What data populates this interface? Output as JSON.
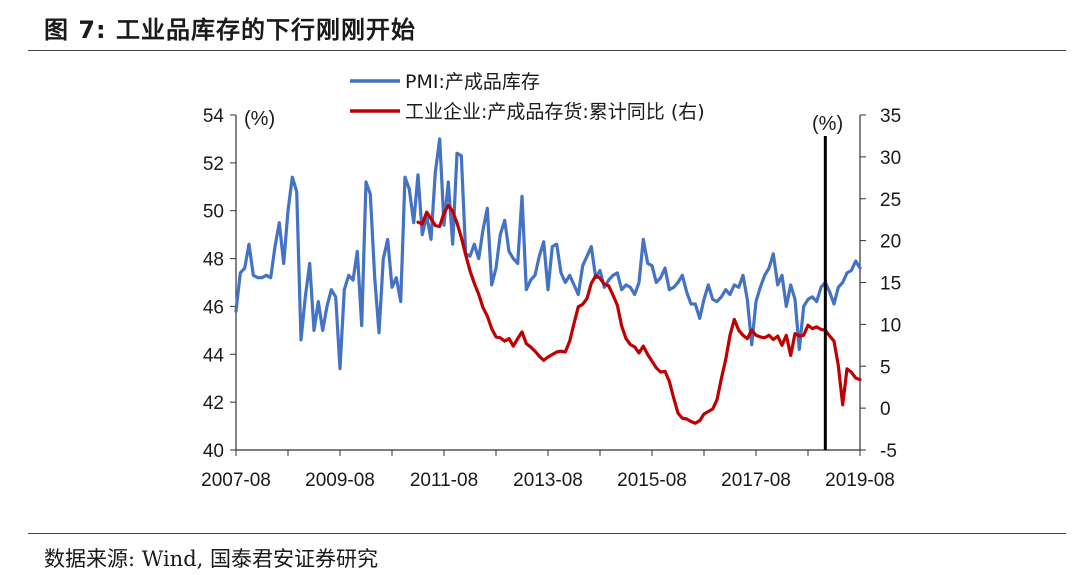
{
  "title": "图 7: 工业品库存的下行刚刚开始",
  "source": "数据来源: Wind, 国泰君安证券研究",
  "chart_data": {
    "type": "line",
    "x_tick_labels": [
      "2007-08",
      "2009-08",
      "2011-08",
      "2013-08",
      "2015-08",
      "2017-08",
      "2019-08"
    ],
    "x_range": [
      "2007-08",
      "2019-08"
    ],
    "left_axis": {
      "unit": "(%)",
      "ylim": [
        40,
        54
      ],
      "ticks": [
        40,
        42,
        44,
        46,
        48,
        50,
        52,
        54
      ]
    },
    "right_axis": {
      "unit": "(%)",
      "ylim": [
        -5,
        35
      ],
      "ticks": [
        -5,
        0,
        5,
        10,
        15,
        20,
        25,
        30,
        35
      ]
    },
    "vertical_marker": {
      "x": "2018-12",
      "note": "black vertical line"
    },
    "series": [
      {
        "name": "PMI:产成品库存",
        "axis": "left",
        "color": "#4472C4",
        "x": [
          "2007-08",
          "2007-09",
          "2007-10",
          "2007-11",
          "2007-12",
          "2008-01",
          "2008-02",
          "2008-03",
          "2008-04",
          "2008-05",
          "2008-06",
          "2008-07",
          "2008-08",
          "2008-09",
          "2008-10",
          "2008-11",
          "2008-12",
          "2009-01",
          "2009-02",
          "2009-03",
          "2009-04",
          "2009-05",
          "2009-06",
          "2009-07",
          "2009-08",
          "2009-09",
          "2009-10",
          "2009-11",
          "2009-12",
          "2010-01",
          "2010-02",
          "2010-03",
          "2010-04",
          "2010-05",
          "2010-06",
          "2010-07",
          "2010-08",
          "2010-09",
          "2010-10",
          "2010-11",
          "2010-12",
          "2011-01",
          "2011-02",
          "2011-03",
          "2011-04",
          "2011-05",
          "2011-06",
          "2011-07",
          "2011-08",
          "2011-09",
          "2011-10",
          "2011-11",
          "2011-12",
          "2012-01",
          "2012-02",
          "2012-03",
          "2012-04",
          "2012-05",
          "2012-06",
          "2012-07",
          "2012-08",
          "2012-09",
          "2012-10",
          "2012-11",
          "2012-12",
          "2013-01",
          "2013-02",
          "2013-03",
          "2013-04",
          "2013-05",
          "2013-06",
          "2013-07",
          "2013-08",
          "2013-09",
          "2013-10",
          "2013-11",
          "2013-12",
          "2014-01",
          "2014-02",
          "2014-03",
          "2014-04",
          "2014-05",
          "2014-06",
          "2014-07",
          "2014-08",
          "2014-09",
          "2014-10",
          "2014-11",
          "2014-12",
          "2015-01",
          "2015-02",
          "2015-03",
          "2015-04",
          "2015-05",
          "2015-06",
          "2015-07",
          "2015-08",
          "2015-09",
          "2015-10",
          "2015-11",
          "2015-12",
          "2016-01",
          "2016-02",
          "2016-03",
          "2016-04",
          "2016-05",
          "2016-06",
          "2016-07",
          "2016-08",
          "2016-09",
          "2016-10",
          "2016-11",
          "2016-12",
          "2017-01",
          "2017-02",
          "2017-03",
          "2017-04",
          "2017-05",
          "2017-06",
          "2017-07",
          "2017-08",
          "2017-09",
          "2017-10",
          "2017-11",
          "2017-12",
          "2018-01",
          "2018-02",
          "2018-03",
          "2018-04",
          "2018-05",
          "2018-06",
          "2018-07",
          "2018-08",
          "2018-09",
          "2018-10",
          "2018-11",
          "2018-12",
          "2019-01",
          "2019-02",
          "2019-03",
          "2019-04",
          "2019-05",
          "2019-06",
          "2019-07",
          "2019-08"
        ],
        "values": [
          45.8,
          47.4,
          47.6,
          48.6,
          47.3,
          47.2,
          47.2,
          47.3,
          47.2,
          48.5,
          49.5,
          47.8,
          50.0,
          51.4,
          50.8,
          44.6,
          46.4,
          47.8,
          45.0,
          46.2,
          45.0,
          46.0,
          46.7,
          46.4,
          43.4,
          46.7,
          47.3,
          47.1,
          48.3,
          45.2,
          51.2,
          50.7,
          47.2,
          44.9,
          48.0,
          48.8,
          46.8,
          47.2,
          46.2,
          51.4,
          50.9,
          49.5,
          51.5,
          49.0,
          49.8,
          48.8,
          51.6,
          53.0,
          49.4,
          51.2,
          48.6,
          52.4,
          52.3,
          48.2,
          48.1,
          48.6,
          48.0,
          49.2,
          50.1,
          46.9,
          47.6,
          49.0,
          49.6,
          48.3,
          48.0,
          47.8,
          50.6,
          46.7,
          47.1,
          47.3,
          48.1,
          48.7,
          46.7,
          48.5,
          48.6,
          47.4,
          47.0,
          47.3,
          46.9,
          46.5,
          47.7,
          48.1,
          48.5,
          47.2,
          47.5,
          46.8,
          47.1,
          47.3,
          47.4,
          46.7,
          46.9,
          46.8,
          46.5,
          47.0,
          48.8,
          47.8,
          47.7,
          47.0,
          47.2,
          47.6,
          46.7,
          46.8,
          47.0,
          47.3,
          46.6,
          46.1,
          46.1,
          45.5,
          46.3,
          46.9,
          46.3,
          46.2,
          46.4,
          46.7,
          46.5,
          46.9,
          46.8,
          47.3,
          46.3,
          44.4,
          46.2,
          46.8,
          47.3,
          47.6,
          48.2,
          46.9,
          47.3,
          46.0,
          46.9,
          46.3,
          44.2,
          46.0,
          46.3,
          46.4,
          46.2,
          46.8,
          47.0,
          46.6,
          46.1,
          46.8,
          47.0,
          47.4,
          47.5,
          47.9,
          47.6
        ]
      },
      {
        "name": "工业企业:产成品存货:累计同比 (右)",
        "axis": "right",
        "color": "#C00000",
        "x": [
          "2011-02",
          "2011-03",
          "2011-04",
          "2011-05",
          "2011-06",
          "2011-07",
          "2011-08",
          "2011-09",
          "2011-10",
          "2011-11",
          "2011-12",
          "2012-01",
          "2012-02",
          "2012-03",
          "2012-04",
          "2012-05",
          "2012-06",
          "2012-07",
          "2012-08",
          "2012-09",
          "2012-10",
          "2012-11",
          "2012-12",
          "2013-01",
          "2013-02",
          "2013-03",
          "2013-04",
          "2013-05",
          "2013-06",
          "2013-07",
          "2013-08",
          "2013-09",
          "2013-10",
          "2013-11",
          "2013-12",
          "2014-01",
          "2014-02",
          "2014-03",
          "2014-04",
          "2014-05",
          "2014-06",
          "2014-07",
          "2014-08",
          "2014-09",
          "2014-10",
          "2014-11",
          "2014-12",
          "2015-01",
          "2015-02",
          "2015-03",
          "2015-04",
          "2015-05",
          "2015-06",
          "2015-07",
          "2015-08",
          "2015-09",
          "2015-10",
          "2015-11",
          "2015-12",
          "2016-01",
          "2016-02",
          "2016-03",
          "2016-04",
          "2016-05",
          "2016-06",
          "2016-07",
          "2016-08",
          "2016-09",
          "2016-10",
          "2016-11",
          "2016-12",
          "2017-01",
          "2017-02",
          "2017-03",
          "2017-04",
          "2017-05",
          "2017-06",
          "2017-07",
          "2017-08",
          "2017-09",
          "2017-10",
          "2017-11",
          "2017-12",
          "2018-01",
          "2018-02",
          "2018-03",
          "2018-04",
          "2018-05",
          "2018-06",
          "2018-07",
          "2018-08",
          "2018-09",
          "2018-10",
          "2018-11",
          "2018-12",
          "2019-01",
          "2019-02",
          "2019-03",
          "2019-04",
          "2019-05",
          "2019-06",
          "2019-07",
          "2019-08"
        ],
        "values": [
          22.2,
          22.0,
          23.4,
          22.6,
          21.8,
          21.7,
          23.3,
          24.2,
          23.5,
          22.1,
          20.4,
          18.3,
          16.4,
          14.9,
          13.6,
          12.0,
          11.0,
          9.5,
          8.5,
          8.4,
          8.0,
          8.3,
          7.4,
          8.3,
          9.1,
          7.7,
          7.3,
          6.8,
          6.2,
          5.7,
          6.1,
          6.4,
          6.7,
          6.8,
          6.7,
          8.0,
          10.1,
          12.1,
          12.4,
          13.1,
          14.9,
          15.8,
          15.5,
          14.8,
          14.6,
          13.5,
          12.3,
          9.8,
          8.3,
          7.6,
          7.3,
          6.6,
          7.4,
          6.4,
          5.6,
          4.8,
          4.3,
          4.4,
          3.2,
          1.2,
          -0.6,
          -1.2,
          -1.3,
          -1.6,
          -1.8,
          -1.5,
          -0.7,
          -0.4,
          -0.1,
          1.0,
          3.5,
          5.8,
          8.7,
          10.6,
          9.3,
          8.7,
          8.3,
          9.3,
          8.7,
          8.5,
          8.4,
          8.7,
          8.2,
          8.6,
          7.5,
          8.7,
          6.3,
          8.9,
          8.6,
          8.7,
          9.9,
          9.5,
          9.7,
          9.4,
          9.3,
          8.6,
          8.0,
          5.1,
          0.4,
          4.7,
          4.3,
          3.6,
          3.4
        ]
      }
    ]
  }
}
